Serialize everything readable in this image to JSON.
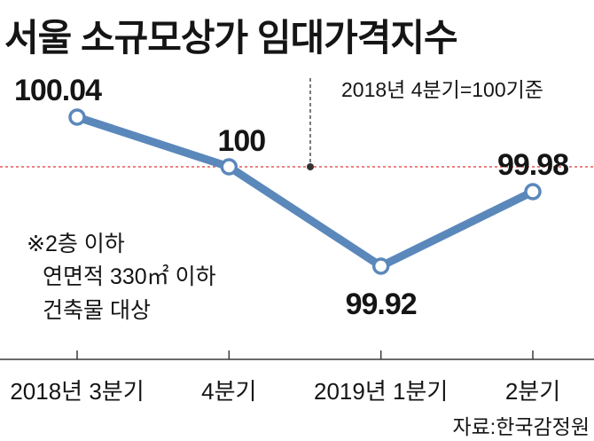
{
  "colors": {
    "series": "#5b88bb",
    "marker_fill": "#ffffff",
    "reference_line": "#e35a5a",
    "leader": "#333333"
  },
  "chart_data": {
    "type": "line",
    "title": "서울 소규모상가 임대가격지수",
    "categories": [
      "2018년 3분기",
      "4분기",
      "2019년 1분기",
      "2분기"
    ],
    "values": [
      100.04,
      100,
      99.92,
      99.98
    ],
    "ylim": [
      99.9,
      100.06
    ],
    "grid": false,
    "reference_line": {
      "value": 100,
      "label": "2018년 4분기=100기준"
    },
    "annotations": [
      "※2층 이하",
      "연면적 330㎡ 이하",
      "건축물 대상"
    ],
    "source": "자료:한국감정원"
  }
}
